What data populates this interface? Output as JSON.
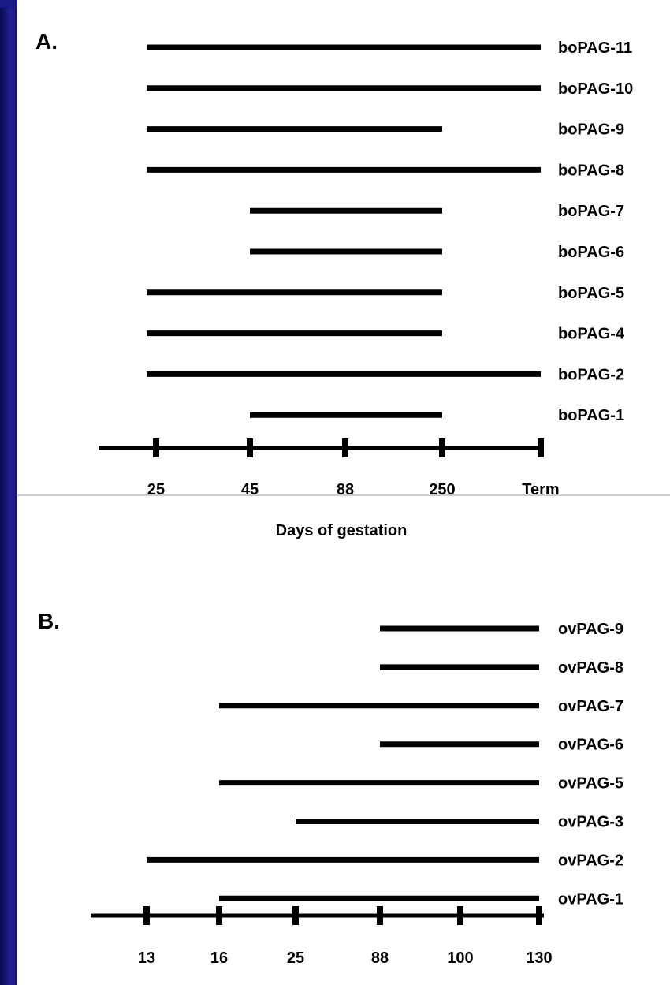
{
  "chart_data": [
    {
      "type": "range-bar",
      "panel_label": "A.",
      "xlabel": "Days of gestation",
      "x_ticks": [
        "25",
        "45",
        "88",
        "250",
        "Term"
      ],
      "series": [
        {
          "name": "boPAG-11",
          "start": "25",
          "end": "Term"
        },
        {
          "name": "boPAG-10",
          "start": "25",
          "end": "Term"
        },
        {
          "name": "boPAG-9",
          "start": "25",
          "end": "250"
        },
        {
          "name": "boPAG-8",
          "start": "25",
          "end": "Term"
        },
        {
          "name": "boPAG-7",
          "start": "45",
          "end": "250"
        },
        {
          "name": "boPAG-6",
          "start": "45",
          "end": "250"
        },
        {
          "name": "boPAG-5",
          "start": "25",
          "end": "250"
        },
        {
          "name": "boPAG-4",
          "start": "25",
          "end": "250"
        },
        {
          "name": "boPAG-2",
          "start": "25",
          "end": "Term"
        },
        {
          "name": "boPAG-1",
          "start": "45",
          "end": "250"
        }
      ]
    },
    {
      "type": "range-bar",
      "panel_label": "B.",
      "xlabel": "",
      "x_ticks": [
        "13",
        "16",
        "25",
        "88",
        "100",
        "130"
      ],
      "series": [
        {
          "name": "ovPAG-9",
          "start": "88",
          "end": "130"
        },
        {
          "name": "ovPAG-8",
          "start": "88",
          "end": "130"
        },
        {
          "name": "ovPAG-7",
          "start": "16",
          "end": "130"
        },
        {
          "name": "ovPAG-6",
          "start": "88",
          "end": "130"
        },
        {
          "name": "ovPAG-5",
          "start": "16",
          "end": "130"
        },
        {
          "name": "ovPAG-3",
          "start": "25",
          "end": "130"
        },
        {
          "name": "ovPAG-2",
          "start": "13",
          "end": "130"
        },
        {
          "name": "ovPAG-1",
          "start": "16",
          "end": "130"
        }
      ]
    }
  ],
  "colors": {
    "ink": "#000000",
    "background": "#ffffff",
    "frame": "#1a1a86"
  }
}
